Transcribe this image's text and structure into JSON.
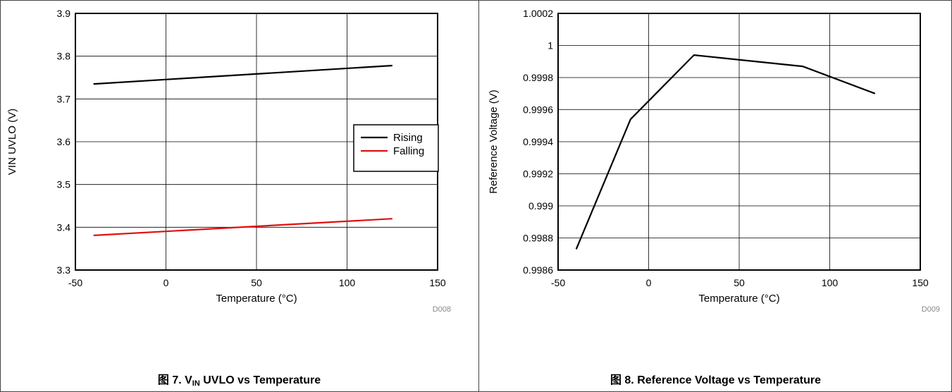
{
  "chart_data": [
    {
      "type": "line",
      "title": "",
      "xlabel": "Temperature (°C)",
      "ylabel": "VIN UVLO (V)",
      "xlim": [
        -50,
        150
      ],
      "ylim": [
        3.3,
        3.9
      ],
      "xticks": [
        "-50",
        "0",
        "50",
        "100",
        "150"
      ],
      "yticks": [
        "3.3",
        "3.4",
        "3.5",
        "3.6",
        "3.7",
        "3.8",
        "3.9"
      ],
      "grid": true,
      "legend": "right",
      "series": [
        {
          "name": "Rising",
          "color": "#000000",
          "x": [
            -40,
            125
          ],
          "y": [
            3.735,
            3.778
          ]
        },
        {
          "name": "Falling",
          "color": "#e01010",
          "x": [
            -40,
            125
          ],
          "y": [
            3.381,
            3.42
          ]
        }
      ],
      "code": "D008",
      "caption": {
        "prefix": "图 7. V",
        "sub": "IN",
        "suffix": " UVLO vs Temperature"
      }
    },
    {
      "type": "line",
      "title": "",
      "xlabel": "Temperature (°C)",
      "ylabel": "Reference Voltage (V)",
      "xlim": [
        -50,
        150
      ],
      "ylim": [
        0.9986,
        1.0002
      ],
      "xticks": [
        "-50",
        "0",
        "50",
        "100",
        "150"
      ],
      "yticks": [
        "0.9986",
        "0.9988",
        "0.999",
        "0.9992",
        "0.9994",
        "0.9996",
        "0.9998",
        "1",
        "1.0002"
      ],
      "grid": true,
      "legend": "none",
      "series": [
        {
          "color": "#000000",
          "x": [
            -40,
            -10,
            25,
            85,
            125
          ],
          "y": [
            0.99873,
            0.99954,
            0.99994,
            0.99987,
            0.9997
          ]
        }
      ],
      "code": "D009",
      "caption": {
        "prefix": "图 8. Reference Voltage vs Temperature",
        "sub": "",
        "suffix": ""
      }
    }
  ]
}
